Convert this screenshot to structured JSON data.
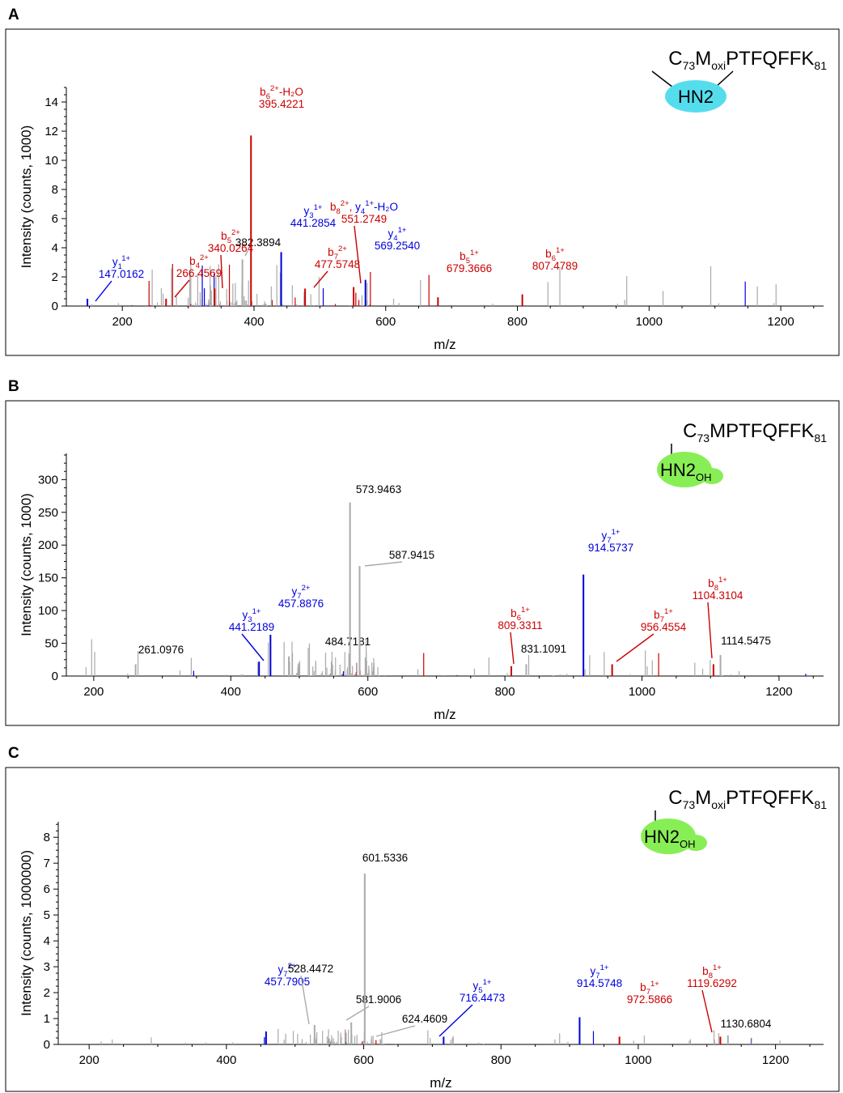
{
  "colors": {
    "b_ion": "#cc0000",
    "y_ion": "#0000dd",
    "unassigned": "#aaaaaa",
    "hn2_oxi": "#55ddee",
    "hn2_oh": "#88ee55"
  },
  "chart_data": [
    {
      "panel": "A",
      "type": "bar",
      "xlabel": "m/z",
      "ylabel": "Intensity (counts, 1000)",
      "xlim": [
        115,
        1265
      ],
      "ylim": [
        0,
        15
      ],
      "xticks": [
        "200",
        "400",
        "600",
        "800",
        "1000",
        "1200"
      ],
      "yticks": [
        "0",
        "2",
        "4",
        "6",
        "8",
        "10",
        "12",
        "14"
      ],
      "structure": {
        "residue": "C",
        "res_sub": "73",
        "mod": "M",
        "mod_sub": "oxi",
        "rest": "PTFQFFK",
        "end_sub": "81",
        "adduct": "HN2",
        "adduct_sub": "",
        "blob": "hn2_oxi"
      },
      "annotated_peaks": [
        {
          "x": 147.0162,
          "y": 0.5,
          "color": "blue",
          "ion": "y",
          "sub": "1",
          "sup": "1+",
          "suffix": "",
          "mz_label": "147.0162"
        },
        {
          "x": 266.4569,
          "y": 0.5,
          "color": "red",
          "ion": "b",
          "sub": "4",
          "sup": "2+",
          "suffix": "",
          "mz_label": "266.4569"
        },
        {
          "x": 340.0264,
          "y": 1.2,
          "color": "red",
          "ion": "b",
          "sub": "5",
          "sup": "2+",
          "suffix": "",
          "mz_label": "340.0264"
        },
        {
          "x": 382.3894,
          "y": 3.2,
          "color": "gray",
          "ion": "",
          "sub": "",
          "sup": "",
          "suffix": "",
          "mz_label": "382.3894"
        },
        {
          "x": 395.4221,
          "y": 11.7,
          "color": "red",
          "ion": "b",
          "sub": "6",
          "sup": "2+",
          "suffix": "-H₂O",
          "mz_label": "395.4221"
        },
        {
          "x": 441.2854,
          "y": 3.7,
          "color": "blue",
          "ion": "y",
          "sub": "3",
          "sup": "1+",
          "suffix": "",
          "mz_label": "441.2854"
        },
        {
          "x": 477.5748,
          "y": 1.2,
          "color": "red",
          "ion": "b",
          "sub": "7",
          "sup": "2+",
          "suffix": "",
          "mz_label": "477.5748"
        },
        {
          "x": 551.2749,
          "y": 1.3,
          "color": "red",
          "ion": "b",
          "sub": "8",
          "sup": "2+",
          "suffix": ", y₄¹⁺-H₂O",
          "mz_label": "551.2749"
        },
        {
          "x": 569.254,
          "y": 1.8,
          "color": "blue",
          "ion": "y",
          "sub": "4",
          "sup": "1+",
          "suffix": "",
          "mz_label": "569.2540"
        },
        {
          "x": 679.3666,
          "y": 0.6,
          "color": "red",
          "ion": "b",
          "sub": "5",
          "sup": "1+",
          "suffix": "",
          "mz_label": "679.3666"
        },
        {
          "x": 807.4789,
          "y": 0.8,
          "color": "red",
          "ion": "b",
          "sub": "6",
          "sup": "1+",
          "suffix": "",
          "mz_label": "807.4789"
        }
      ]
    },
    {
      "panel": "B",
      "type": "bar",
      "xlabel": "m/z",
      "ylabel": "Intensity (counts, 1000)",
      "xlim": [
        160,
        1265
      ],
      "ylim": [
        0,
        340
      ],
      "xticks": [
        "200",
        "400",
        "600",
        "800",
        "1000",
        "1200"
      ],
      "yticks": [
        "0",
        "50",
        "100",
        "150",
        "200",
        "250",
        "300"
      ],
      "structure": {
        "residue": "C",
        "res_sub": "73",
        "mod": "M",
        "mod_sub": "",
        "rest": "PTFQFFK",
        "end_sub": "81",
        "adduct": "HN2",
        "adduct_sub": "OH",
        "blob": "hn2_oh"
      },
      "annotated_peaks": [
        {
          "x": 261.0976,
          "y": 18,
          "color": "gray",
          "ion": "",
          "sub": "",
          "sup": "",
          "suffix": "",
          "mz_label": "261.0976"
        },
        {
          "x": 441.2189,
          "y": 22,
          "color": "blue",
          "ion": "y",
          "sub": "3",
          "sup": "1+",
          "suffix": "",
          "mz_label": "441.2189"
        },
        {
          "x": 457.8876,
          "y": 63,
          "color": "blue",
          "ion": "y",
          "sub": "7",
          "sup": "2+",
          "suffix": "",
          "mz_label": "457.8876"
        },
        {
          "x": 484.7181,
          "y": 30,
          "color": "gray",
          "ion": "",
          "sub": "",
          "sup": "",
          "suffix": "",
          "mz_label": "484.7181"
        },
        {
          "x": 573.9463,
          "y": 265,
          "color": "gray",
          "ion": "",
          "sub": "",
          "sup": "",
          "suffix": "",
          "mz_label": "573.9463"
        },
        {
          "x": 587.9415,
          "y": 168,
          "color": "gray",
          "ion": "",
          "sub": "",
          "sup": "",
          "suffix": "",
          "mz_label": "587.9415"
        },
        {
          "x": 809.3311,
          "y": 15,
          "color": "red",
          "ion": "b",
          "sub": "6",
          "sup": "1+",
          "suffix": "",
          "mz_label": "809.3311"
        },
        {
          "x": 831.1091,
          "y": 18,
          "color": "gray",
          "ion": "",
          "sub": "",
          "sup": "",
          "suffix": "",
          "mz_label": "831.1091"
        },
        {
          "x": 914.5737,
          "y": 155,
          "color": "blue",
          "ion": "y",
          "sub": "7",
          "sup": "1+",
          "suffix": "",
          "mz_label": "914.5737"
        },
        {
          "x": 956.4554,
          "y": 18,
          "color": "red",
          "ion": "b",
          "sub": "7",
          "sup": "1+",
          "suffix": "",
          "mz_label": "956.4554"
        },
        {
          "x": 1104.3104,
          "y": 18,
          "color": "red",
          "ion": "b",
          "sub": "8",
          "sup": "1+",
          "suffix": "",
          "mz_label": "1104.3104"
        },
        {
          "x": 1114.5475,
          "y": 32,
          "color": "gray",
          "ion": "",
          "sub": "",
          "sup": "",
          "suffix": "",
          "mz_label": "1114.5475"
        }
      ]
    },
    {
      "panel": "C",
      "type": "bar",
      "xlabel": "m/z",
      "ylabel": "Intensity (counts, 1000000)",
      "xlim": [
        155,
        1270
      ],
      "ylim": [
        0,
        8.6
      ],
      "xticks": [
        "200",
        "400",
        "600",
        "800",
        "1000",
        "1200"
      ],
      "yticks": [
        "0",
        "1",
        "2",
        "3",
        "4",
        "5",
        "6",
        "7",
        "8"
      ],
      "structure": {
        "residue": "C",
        "res_sub": "73",
        "mod": "M",
        "mod_sub": "oxi",
        "rest": "PTFQFFK",
        "end_sub": "81",
        "adduct": "HN2",
        "adduct_sub": "OH",
        "blob": "hn2_oh"
      },
      "annotated_peaks": [
        {
          "x": 457.7905,
          "y": 0.5,
          "color": "blue",
          "ion": "y",
          "sub": "7",
          "sup": "2+",
          "suffix": "",
          "mz_label": "457.7905"
        },
        {
          "x": 528.4472,
          "y": 0.75,
          "color": "gray",
          "ion": "",
          "sub": "",
          "sup": "",
          "suffix": "",
          "mz_label": "528.4472"
        },
        {
          "x": 581.9006,
          "y": 0.85,
          "color": "gray",
          "ion": "",
          "sub": "",
          "sup": "",
          "suffix": "",
          "mz_label": "581.9006"
        },
        {
          "x": 601.5336,
          "y": 6.6,
          "color": "gray",
          "ion": "",
          "sub": "",
          "sup": "",
          "suffix": "",
          "mz_label": "601.5336"
        },
        {
          "x": 624.4609,
          "y": 0.2,
          "color": "gray",
          "ion": "",
          "sub": "",
          "sup": "",
          "suffix": "",
          "mz_label": "624.4609"
        },
        {
          "x": 716.4473,
          "y": 0.3,
          "color": "blue",
          "ion": "y",
          "sub": "5",
          "sup": "1+",
          "suffix": "",
          "mz_label": "716.4473"
        },
        {
          "x": 914.5748,
          "y": 1.05,
          "color": "blue",
          "ion": "y",
          "sub": "7",
          "sup": "1+",
          "suffix": "",
          "mz_label": "914.5748"
        },
        {
          "x": 972.5866,
          "y": 0.3,
          "color": "red",
          "ion": "b",
          "sub": "7",
          "sup": "1+",
          "suffix": "",
          "mz_label": "972.5866"
        },
        {
          "x": 1119.6292,
          "y": 0.3,
          "color": "red",
          "ion": "b",
          "sub": "8",
          "sup": "1+",
          "suffix": "",
          "mz_label": "1119.6292"
        },
        {
          "x": 1130.6804,
          "y": 0.35,
          "color": "gray",
          "ion": "",
          "sub": "",
          "sup": "",
          "suffix": "",
          "mz_label": "1130.6804"
        }
      ]
    }
  ]
}
